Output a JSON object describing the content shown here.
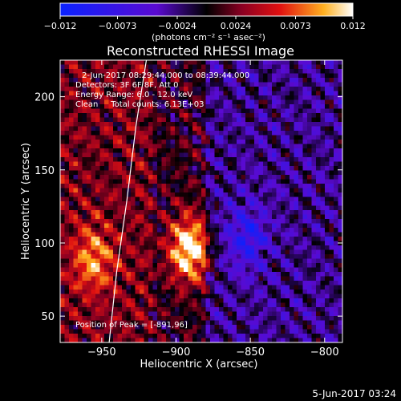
{
  "chart_data": {
    "type": "heatmap",
    "title": "Reconstructed RHESSI Image",
    "xlabel": "Heliocentric X (arcsec)",
    "ylabel": "Heliocentric Y (arcsec)",
    "xlim": [
      -978,
      -788
    ],
    "ylim": [
      32,
      225
    ],
    "x_ticks": [
      -950,
      -900,
      -850,
      -800
    ],
    "x_tick_labels": [
      "−950",
      "−900",
      "−850",
      "−800"
    ],
    "y_ticks": [
      50,
      100,
      150,
      200
    ],
    "y_tick_labels": [
      "50",
      "100",
      "150",
      "200"
    ],
    "colorbar": {
      "range": [
        -0.012,
        0.012
      ],
      "ticks": [
        -0.012,
        -0.0073,
        -0.0024,
        0.0024,
        0.0073,
        0.012
      ],
      "tick_labels": [
        "−0.012",
        "−0.0073",
        "−0.0024",
        "0.0024",
        "0.0073",
        "0.012"
      ],
      "units_label": "(photons cm⁻² s⁻¹ asec⁻²)"
    },
    "sources": [
      {
        "x": -891,
        "y": 96,
        "peak": 0.012
      },
      {
        "x": -956,
        "y": 88,
        "peak": 0.0065
      },
      {
        "x": -853,
        "y": 104,
        "peak": -0.006
      }
    ],
    "limb_curve": [
      [
        -945,
        32
      ],
      [
        -940,
        80
      ],
      [
        -933,
        130
      ],
      [
        -927,
        180
      ],
      [
        -920,
        225
      ]
    ],
    "info_lines": [
      "2-Jun-2017 08:29:44.000 to 08:39:44.000",
      "Detectors: 3F 6F 8F, Att 0",
      "Energy Range: 6.0 - 12.0 keV",
      "Clean     Total counts: 6.13E+03"
    ],
    "peak_label": "Position of Peak = [-891,96]",
    "footer_date": "5-Jun-2017 03:24"
  }
}
